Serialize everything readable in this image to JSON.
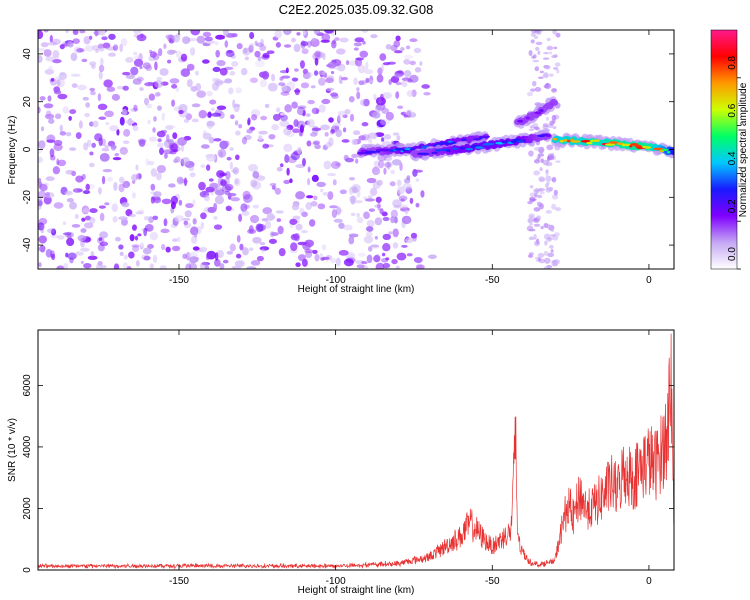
{
  "title": "C2E2.2025.035.09.32.G08",
  "chart_data": [
    {
      "type": "heatmap",
      "xlabel": "Height of straight line (km)",
      "ylabel": "Frequency (Hz)",
      "xlim": [
        -195,
        8
      ],
      "ylim": [
        -50,
        50
      ],
      "xticks": [
        -150,
        -100,
        -50,
        0
      ],
      "yticks": [
        -40,
        -20,
        0,
        20,
        40
      ],
      "colorbar": {
        "label": "Normalized spectral amplitude",
        "range": [
          0,
          1
        ],
        "ticks": [
          "0.0",
          "0.2",
          "0.4",
          "0.6",
          "0.8"
        ],
        "tick_values": [
          0.0,
          0.2,
          0.4,
          0.6,
          0.8
        ],
        "colors": [
          "#ffffff",
          "#c5a8f5",
          "#7f00ff",
          "#1a1aff",
          "#00c8ff",
          "#00ff66",
          "#ccff00",
          "#ff9900",
          "#ff0000",
          "#ff1a8c"
        ]
      },
      "noise_region": {
        "x": [
          -195,
          -78
        ],
        "freq": [
          -50,
          50
        ],
        "amplitude": [
          0.05,
          0.25
        ]
      },
      "vertical_streaks": [
        {
          "x": -36,
          "freq": [
            -50,
            50
          ],
          "amplitude": 0.08
        },
        {
          "x": -31,
          "freq": [
            -50,
            50
          ],
          "amplitude": 0.08
        }
      ],
      "tracks": [
        {
          "name": "",
          "x": [
            -92,
            -75,
            -62,
            -52
          ],
          "freq": [
            -1,
            0,
            3,
            5
          ],
          "amplitude": [
            0.25,
            0.45,
            0.4,
            0.35
          ]
        },
        {
          "name": "",
          "x": [
            -75,
            -55,
            -40,
            -32
          ],
          "freq": [
            -2,
            1,
            4,
            6
          ],
          "amplitude": [
            0.3,
            0.45,
            0.4,
            0.3
          ]
        },
        {
          "name": "",
          "x": [
            -42,
            -36,
            -30
          ],
          "freq": [
            11,
            15,
            20
          ],
          "amplitude": [
            0.25,
            0.25,
            0.2
          ]
        },
        {
          "name": "",
          "x": [
            -30,
            -15,
            0,
            8
          ],
          "freq": [
            4,
            3,
            1,
            -1
          ],
          "amplitude": [
            0.85,
            0.9,
            0.95,
            0.6
          ]
        }
      ]
    },
    {
      "type": "line",
      "xlabel": "Height of straight line (km)",
      "ylabel": "SNR (10 * v/v)",
      "xlim": [
        -195,
        8
      ],
      "ylim": [
        0,
        7800
      ],
      "xticks": [
        -150,
        -100,
        -50,
        0
      ],
      "yticks": [
        0,
        2000,
        4000,
        6000
      ],
      "color": "#e83232",
      "series": [
        {
          "name": "",
          "x": [
            -195,
            -150,
            -100,
            -80,
            -70,
            -65,
            -60,
            -57,
            -55,
            -52,
            -50,
            -47,
            -44,
            -42.5,
            -42,
            -41,
            -38,
            -35,
            -30,
            -28,
            -26,
            -24,
            -22,
            -20,
            -18,
            -15,
            -12,
            -10,
            -8,
            -5,
            -2,
            0,
            2,
            4,
            6,
            7,
            8
          ],
          "y": [
            150,
            160,
            150,
            250,
            500,
            900,
            1300,
            1800,
            1500,
            1100,
            900,
            1200,
            1500,
            5100,
            1600,
            800,
            300,
            200,
            350,
            1500,
            2500,
            2000,
            2900,
            2300,
            2400,
            2800,
            3300,
            3000,
            3800,
            3500,
            4000,
            4200,
            4000,
            4500,
            5300,
            7800,
            1800
          ]
        }
      ]
    }
  ]
}
